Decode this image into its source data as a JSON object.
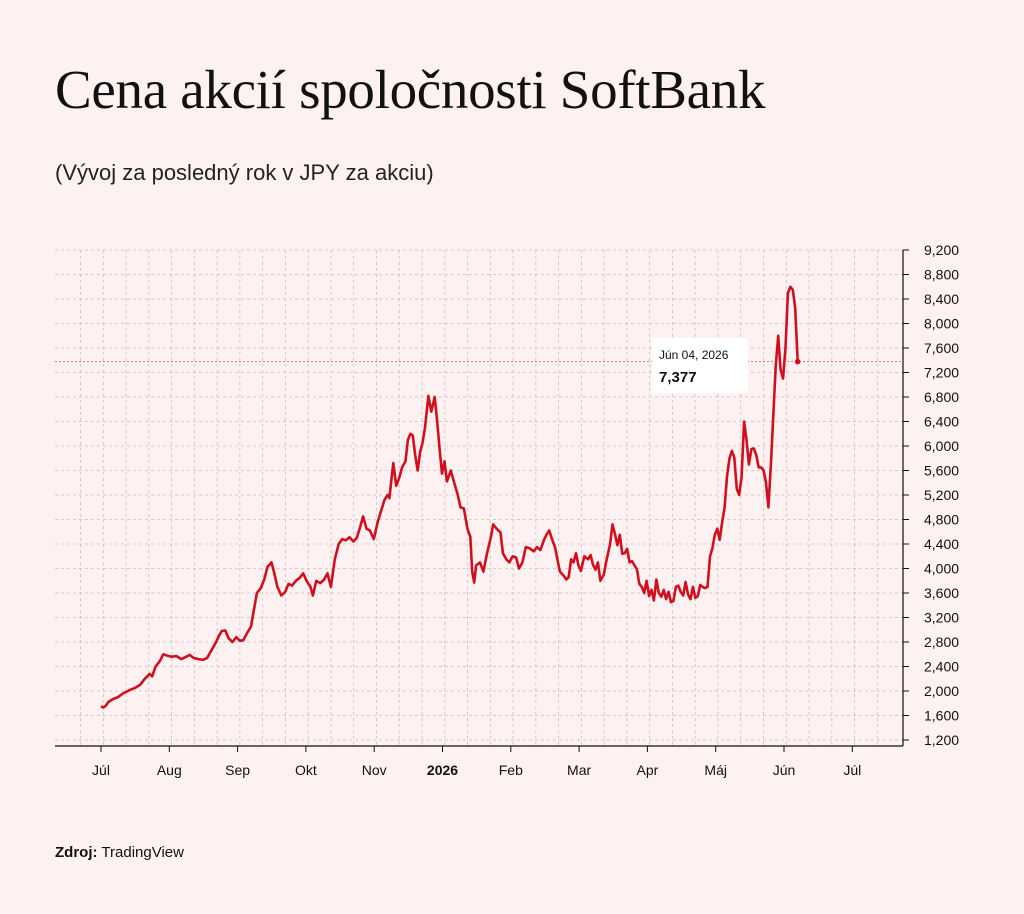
{
  "title": "Cena akcií spoločnosti SoftBank",
  "subtitle": "(Vývoj za posledný rok v JPY za akciu)",
  "source_label": "Zdroj:",
  "source_value": "TradingView",
  "colors": {
    "line": "#d0101f",
    "background": "#fdf1f1",
    "grid": "#c8c0c0"
  },
  "chart_data": {
    "type": "line",
    "title": "Cena akcií spoločnosti SoftBank",
    "xlabel": "",
    "ylabel": "",
    "ylim": [
      1200,
      9200
    ],
    "y_ticks": [
      1200,
      1600,
      2000,
      2400,
      2800,
      3200,
      3600,
      4000,
      4400,
      4800,
      5200,
      5600,
      6000,
      6400,
      6800,
      7200,
      7600,
      8000,
      8400,
      8800,
      9200
    ],
    "y_tick_labels": [
      "1,200",
      "1,600",
      "2,000",
      "2,400",
      "2,800",
      "3,200",
      "3,600",
      "4,000",
      "4,400",
      "4,800",
      "5,200",
      "5,600",
      "6,000",
      "6,400",
      "6,800",
      "7,200",
      "7,600",
      "8,000",
      "8,400",
      "8,800",
      "9,200"
    ],
    "x_tick_labels": [
      "Júl",
      "Aug",
      "Sep",
      "Okt",
      "Nov",
      "2026",
      "Feb",
      "Mar",
      "Apr",
      "Máj",
      "Jún",
      "Júl"
    ],
    "x_tick_bold": [
      false,
      false,
      false,
      false,
      false,
      true,
      false,
      false,
      false,
      false,
      false,
      false
    ],
    "x_range_months": [
      -0.3,
      11.7
    ],
    "grid": true,
    "legend": "none",
    "series": [
      {
        "values": [
          [
            0,
            1750
          ],
          [
            0.05,
            1730
          ],
          [
            0.1,
            1760
          ],
          [
            0.15,
            1820
          ],
          [
            0.25,
            1870
          ],
          [
            0.35,
            1900
          ],
          [
            0.45,
            1960
          ],
          [
            0.6,
            2020
          ],
          [
            0.7,
            2050
          ],
          [
            0.8,
            2100
          ],
          [
            0.9,
            2200
          ],
          [
            1.0,
            2280
          ],
          [
            1.05,
            2240
          ],
          [
            1.12,
            2400
          ],
          [
            1.2,
            2480
          ],
          [
            1.28,
            2600
          ],
          [
            1.35,
            2580
          ],
          [
            1.45,
            2560
          ],
          [
            1.55,
            2570
          ],
          [
            1.65,
            2520
          ],
          [
            1.75,
            2560
          ],
          [
            1.82,
            2590
          ],
          [
            1.9,
            2540
          ],
          [
            2.0,
            2520
          ],
          [
            2.1,
            2510
          ],
          [
            2.18,
            2540
          ],
          [
            2.25,
            2640
          ],
          [
            2.35,
            2780
          ],
          [
            2.42,
            2900
          ],
          [
            2.48,
            2980
          ],
          [
            2.55,
            2990
          ],
          [
            2.62,
            2860
          ],
          [
            2.7,
            2800
          ],
          [
            2.78,
            2880
          ],
          [
            2.85,
            2820
          ],
          [
            2.92,
            2830
          ],
          [
            3.0,
            2950
          ],
          [
            3.08,
            3050
          ],
          [
            3.15,
            3380
          ],
          [
            3.2,
            3600
          ],
          [
            3.28,
            3680
          ],
          [
            3.35,
            3820
          ],
          [
            3.42,
            4030
          ],
          [
            3.5,
            4100
          ],
          [
            3.55,
            3950
          ],
          [
            3.62,
            3700
          ],
          [
            3.7,
            3560
          ],
          [
            3.78,
            3620
          ],
          [
            3.85,
            3750
          ],
          [
            3.92,
            3720
          ],
          [
            4.0,
            3800
          ],
          [
            4.08,
            3850
          ],
          [
            4.15,
            3920
          ],
          [
            4.22,
            3800
          ],
          [
            4.3,
            3700
          ],
          [
            4.35,
            3560
          ],
          [
            4.42,
            3800
          ],
          [
            4.5,
            3760
          ],
          [
            4.58,
            3820
          ],
          [
            4.65,
            3920
          ],
          [
            4.72,
            3700
          ],
          [
            4.8,
            4150
          ],
          [
            4.88,
            4400
          ],
          [
            4.95,
            4480
          ],
          [
            5.02,
            4460
          ],
          [
            5.1,
            4510
          ],
          [
            5.18,
            4440
          ],
          [
            5.25,
            4500
          ],
          [
            5.32,
            4680
          ],
          [
            5.38,
            4850
          ],
          [
            5.45,
            4650
          ],
          [
            5.52,
            4620
          ],
          [
            5.6,
            4480
          ],
          [
            5.68,
            4760
          ],
          [
            5.75,
            4940
          ],
          [
            5.82,
            5120
          ],
          [
            5.88,
            5200
          ],
          [
            5.92,
            5150
          ],
          [
            5.96,
            5450
          ],
          [
            6.0,
            5720
          ],
          [
            6.06,
            5350
          ],
          [
            6.12,
            5480
          ],
          [
            6.18,
            5650
          ],
          [
            6.25,
            5750
          ],
          [
            6.3,
            6100
          ],
          [
            6.35,
            6200
          ],
          [
            6.4,
            6170
          ],
          [
            6.45,
            5850
          ],
          [
            6.5,
            5600
          ],
          [
            6.55,
            5900
          ],
          [
            6.6,
            6050
          ],
          [
            6.65,
            6300
          ],
          [
            6.72,
            6820
          ],
          [
            6.78,
            6560
          ],
          [
            6.85,
            6800
          ],
          [
            6.9,
            6400
          ],
          [
            6.95,
            5950
          ],
          [
            7.0,
            5550
          ],
          [
            7.05,
            5750
          ],
          [
            7.1,
            5420
          ],
          [
            7.18,
            5600
          ],
          [
            7.25,
            5400
          ],
          [
            7.32,
            5210
          ],
          [
            7.38,
            5000
          ],
          [
            7.45,
            4980
          ],
          [
            7.52,
            4650
          ],
          [
            7.58,
            4520
          ],
          [
            7.62,
            3950
          ],
          [
            7.66,
            3770
          ],
          [
            7.7,
            4050
          ],
          [
            7.78,
            4100
          ],
          [
            7.85,
            3950
          ],
          [
            7.92,
            4230
          ],
          [
            8.0,
            4500
          ],
          [
            8.05,
            4720
          ],
          [
            8.12,
            4650
          ],
          [
            8.2,
            4590
          ],
          [
            8.25,
            4250
          ],
          [
            8.32,
            4150
          ],
          [
            8.38,
            4100
          ],
          [
            8.45,
            4200
          ],
          [
            8.52,
            4180
          ],
          [
            8.58,
            4000
          ],
          [
            8.65,
            4100
          ],
          [
            8.72,
            4350
          ],
          [
            8.8,
            4330
          ],
          [
            8.88,
            4280
          ],
          [
            8.95,
            4350
          ],
          [
            9.02,
            4300
          ],
          [
            9.1,
            4480
          ],
          [
            9.15,
            4560
          ],
          [
            9.2,
            4620
          ],
          [
            9.27,
            4450
          ],
          [
            9.32,
            4350
          ],
          [
            9.38,
            4100
          ],
          [
            9.42,
            3950
          ],
          [
            9.5,
            3880
          ],
          [
            9.55,
            3820
          ],
          [
            9.6,
            3860
          ],
          [
            9.65,
            4150
          ],
          [
            9.7,
            4100
          ],
          [
            9.75,
            4250
          ],
          [
            9.8,
            4050
          ],
          [
            9.85,
            3960
          ],
          [
            9.92,
            4200
          ],
          [
            10.0,
            4150
          ],
          [
            10.05,
            4220
          ],
          [
            10.1,
            4060
          ],
          [
            10.15,
            3980
          ],
          [
            10.2,
            4100
          ],
          [
            10.25,
            3800
          ],
          [
            10.32,
            3900
          ],
          [
            10.38,
            4150
          ],
          [
            10.45,
            4400
          ],
          [
            10.5,
            4720
          ],
          [
            10.55,
            4560
          ],
          [
            10.6,
            4380
          ],
          [
            10.65,
            4550
          ],
          [
            10.7,
            4240
          ],
          [
            10.75,
            4250
          ],
          [
            10.8,
            4320
          ],
          [
            10.85,
            4100
          ],
          [
            10.9,
            4120
          ],
          [
            10.95,
            4050
          ],
          [
            11.0,
            3990
          ],
          [
            11.05,
            3750
          ],
          [
            11.1,
            3700
          ],
          [
            11.15,
            3600
          ],
          [
            11.2,
            3800
          ],
          [
            11.25,
            3550
          ],
          [
            11.3,
            3650
          ],
          [
            11.35,
            3480
          ],
          [
            11.4,
            3820
          ],
          [
            11.45,
            3600
          ],
          [
            11.5,
            3540
          ],
          [
            11.55,
            3650
          ],
          [
            11.6,
            3500
          ],
          [
            11.65,
            3620
          ],
          [
            11.7,
            3450
          ],
          [
            11.75,
            3470
          ],
          [
            11.8,
            3700
          ],
          [
            11.85,
            3720
          ],
          [
            11.9,
            3620
          ],
          [
            11.95,
            3560
          ],
          [
            12.0,
            3780
          ],
          [
            12.05,
            3580
          ],
          [
            12.1,
            3500
          ],
          [
            12.15,
            3700
          ],
          [
            12.2,
            3520
          ],
          [
            12.25,
            3550
          ],
          [
            12.3,
            3730
          ],
          [
            12.35,
            3700
          ],
          [
            12.4,
            3680
          ],
          [
            12.45,
            3700
          ],
          [
            12.5,
            4200
          ],
          [
            12.55,
            4330
          ],
          [
            12.6,
            4550
          ],
          [
            12.65,
            4650
          ],
          [
            12.7,
            4470
          ],
          [
            12.75,
            4750
          ],
          [
            12.8,
            5000
          ],
          [
            12.85,
            5500
          ],
          [
            12.9,
            5800
          ],
          [
            12.95,
            5920
          ],
          [
            13.0,
            5810
          ],
          [
            13.05,
            5300
          ],
          [
            13.1,
            5200
          ],
          [
            13.15,
            5500
          ],
          [
            13.2,
            6400
          ],
          [
            13.25,
            6100
          ],
          [
            13.3,
            5700
          ],
          [
            13.35,
            5950
          ],
          [
            13.4,
            5960
          ],
          [
            13.45,
            5850
          ],
          [
            13.5,
            5650
          ],
          [
            13.55,
            5650
          ],
          [
            13.6,
            5600
          ],
          [
            13.65,
            5400
          ],
          [
            13.7,
            5000
          ],
          [
            13.75,
            5700
          ],
          [
            13.8,
            6500
          ],
          [
            13.85,
            7300
          ],
          [
            13.9,
            7800
          ],
          [
            13.95,
            7250
          ],
          [
            14.0,
            7100
          ],
          [
            14.05,
            7600
          ],
          [
            14.1,
            8500
          ],
          [
            14.15,
            8600
          ],
          [
            14.2,
            8550
          ],
          [
            14.25,
            8250
          ],
          [
            14.3,
            7377
          ]
        ]
      }
    ],
    "last_point": {
      "date": "Jún 04, 2026",
      "value": 7377,
      "value_label": "7,377"
    }
  }
}
